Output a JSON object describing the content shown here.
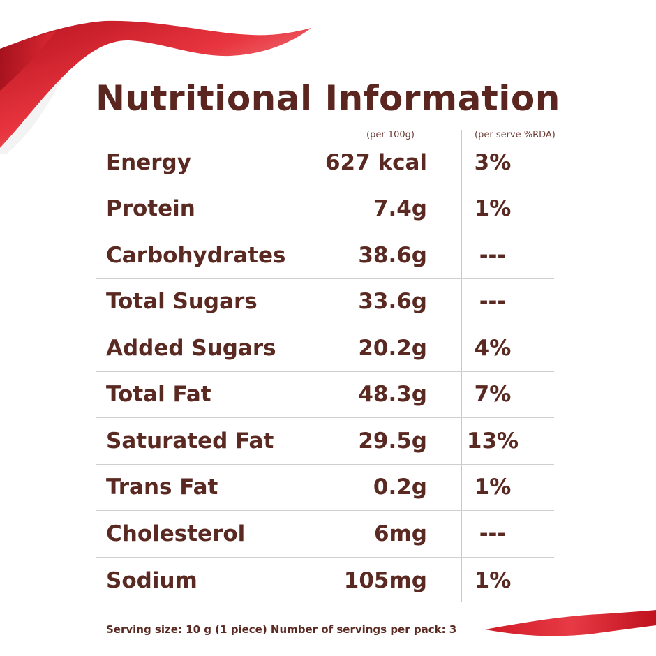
{
  "title": "Nutritional Information",
  "columns": {
    "per100": "(per 100g)",
    "perserve": "(per serve %RDA)"
  },
  "rows": [
    {
      "name": "Energy",
      "amount": "627 kcal",
      "rda": "3%"
    },
    {
      "name": "Protein",
      "amount": "7.4g",
      "rda": "1%"
    },
    {
      "name": "Carbohydrates",
      "amount": "38.6g",
      "rda": "---"
    },
    {
      "name": "Total Sugars",
      "amount": "33.6g",
      "rda": "---"
    },
    {
      "name": "Added Sugars",
      "amount": "20.2g",
      "rda": "4%"
    },
    {
      "name": "Total Fat",
      "amount": "48.3g",
      "rda": "7%"
    },
    {
      "name": "Saturated Fat",
      "amount": "29.5g",
      "rda": "13%"
    },
    {
      "name": "Trans Fat",
      "amount": "0.2g",
      "rda": "1%"
    },
    {
      "name": "Cholesterol",
      "amount": "6mg",
      "rda": "---"
    },
    {
      "name": "Sodium",
      "amount": "105mg",
      "rda": "1%"
    }
  ],
  "footer": "Serving size: 10 g (1 piece) Number of servings per pack: 3",
  "colors": {
    "text": "#5a2a22",
    "ribbon": "#d81e2c",
    "divider": "#cfcfcf"
  }
}
